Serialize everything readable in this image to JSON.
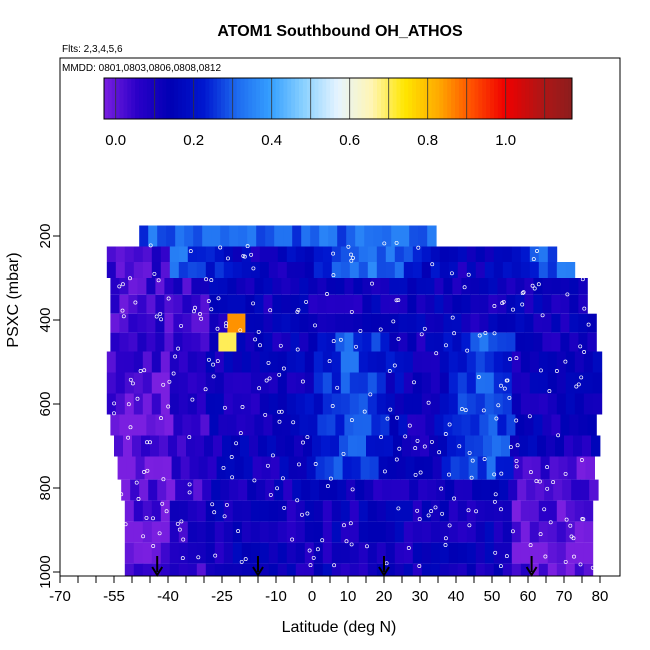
{
  "chart_data": {
    "type": "heatmap",
    "title": "ATOM1 Southbound OH_ATHOS",
    "flights_note": "Flts: 2,3,4,5,6",
    "dates_note": "MMDD: 0801,0803,0806,0808,0812",
    "xlabel": "Latitude (deg N)",
    "ylabel": "PSXC (mbar)",
    "xlim": [
      -70,
      80
    ],
    "ylim": [
      1000,
      100
    ],
    "x_tick_labels": [
      "-70",
      "-55",
      "-40",
      "-25",
      "-10",
      "0",
      "10",
      "20",
      "30",
      "40",
      "50",
      "60",
      "70",
      "80"
    ],
    "x_tick_values": [
      -70,
      -55,
      -40,
      -25,
      -10,
      0,
      10,
      20,
      30,
      40,
      50,
      60,
      70,
      80
    ],
    "y_tick_labels": [
      "200",
      "400",
      "600",
      "800",
      "1000"
    ],
    "y_tick_values": [
      200,
      400,
      600,
      800,
      1000
    ],
    "colorbar": {
      "ticks": [
        "0.0",
        "0.2",
        "0.4",
        "0.6",
        "0.8",
        "1.0"
      ],
      "tick_values": [
        0.0,
        0.2,
        0.4,
        0.6,
        0.8,
        1.0
      ],
      "range": [
        -0.03,
        1.17
      ],
      "colors": [
        "#7a1fe0",
        "#2a00c8",
        "#0000b4",
        "#0018d0",
        "#1e6cf0",
        "#36a0ff",
        "#8cd2ff",
        "#e6f4ff",
        "#fff5b4",
        "#ffe600",
        "#ffaa00",
        "#ff5000",
        "#f00000",
        "#b41414",
        "#8c1e1e"
      ]
    },
    "arrows_latitude": [
      -43,
      -15,
      20,
      61
    ],
    "profiles": [
      {
        "lat_range": [
          -56,
          82
        ],
        "p_range": [
          215,
          1000
        ]
      }
    ],
    "highlights": [
      {
        "lat": -23,
        "p": 400,
        "value": 0.85
      },
      {
        "lat": -24,
        "p": 450,
        "value": 0.7
      }
    ]
  }
}
